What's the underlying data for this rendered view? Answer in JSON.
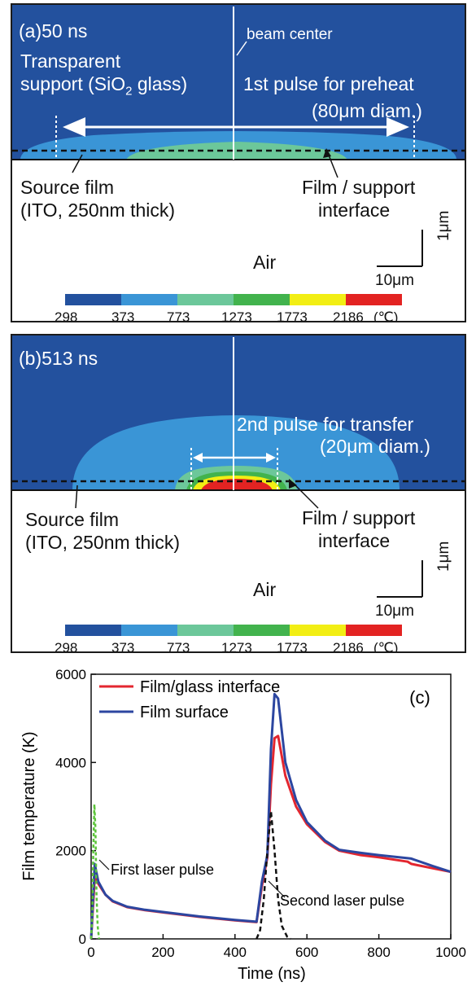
{
  "colors": {
    "c298": "#23519e",
    "c373": "#3a95d6",
    "c773": "#6cc79a",
    "c1273": "#42b34d",
    "c1773": "#f2ee14",
    "c2186": "#e32322",
    "film_interface": "#e3262f",
    "film_surface": "#2c46a0",
    "laser_pulse": "#111111",
    "first_pulse_green": "#5cc43a"
  },
  "panel_a": {
    "label": "(a)50 ns",
    "beam_center": "beam center",
    "support_1": "Transparent",
    "support_2": "support (SiO",
    "support_sub": "2",
    "support_3": " glass)",
    "pulse_1": "1st pulse for preheat",
    "pulse_2": "(80μm diam.)",
    "source_1": "Source film",
    "source_2": "(ITO, 250nm thick)",
    "iface_1": "Film / support",
    "iface_2": "interface",
    "air": "Air",
    "scale_h": "10μm",
    "scale_v": "1μm",
    "colorbar_ticks": [
      "298",
      "373",
      "773",
      "1273",
      "1773",
      "2186"
    ],
    "unit": "(℃)"
  },
  "panel_b": {
    "label": "(b)513 ns",
    "pulse_1": "2nd pulse for transfer",
    "pulse_2": "(20μm diam.)",
    "source_1": "Source film",
    "source_2": "(ITO, 250nm thick)",
    "iface_1": "Film / support",
    "iface_2": "interface",
    "air": "Air",
    "scale_h": "10μm",
    "scale_v": "1μm",
    "colorbar_ticks": [
      "298",
      "373",
      "773",
      "1273",
      "1773",
      "2186"
    ],
    "unit": "(℃)"
  },
  "chart_data": {
    "type": "line",
    "panel_label": "(c)",
    "xlabel": "Time (ns)",
    "ylabel": "Film temperature (K)",
    "xlim": [
      0,
      1000
    ],
    "ylim": [
      0,
      6000
    ],
    "xticks": [
      0,
      200,
      400,
      600,
      800,
      1000
    ],
    "yticks": [
      0,
      2000,
      4000,
      6000
    ],
    "legend_position": "top-left",
    "annotations": [
      "First laser pulse",
      "Second laser pulse"
    ],
    "series": [
      {
        "name": "Film/glass interface",
        "x": [
          0,
          10,
          20,
          40,
          60,
          100,
          150,
          200,
          300,
          400,
          460,
          475,
          490,
          500,
          510,
          520,
          540,
          570,
          600,
          650,
          690,
          750,
          800,
          880,
          890,
          950,
          1000
        ],
        "y": [
          0,
          1400,
          1250,
          1000,
          850,
          720,
          650,
          600,
          500,
          420,
          380,
          1200,
          1850,
          3500,
          4550,
          4600,
          3700,
          3000,
          2600,
          2200,
          2000,
          1900,
          1850,
          1750,
          1700,
          1600,
          1520
        ]
      },
      {
        "name": "Film surface",
        "x": [
          0,
          10,
          20,
          40,
          60,
          100,
          150,
          200,
          300,
          400,
          460,
          475,
          490,
          500,
          510,
          520,
          540,
          570,
          600,
          650,
          690,
          750,
          800,
          880,
          890,
          950,
          1000
        ],
        "y": [
          0,
          1700,
          1300,
          1000,
          860,
          730,
          660,
          610,
          510,
          430,
          390,
          1300,
          1900,
          4300,
          5550,
          5450,
          4000,
          3150,
          2650,
          2230,
          2020,
          1950,
          1900,
          1830,
          1820,
          1650,
          1520
        ]
      },
      {
        "name": "",
        "style": "dashed",
        "x": [
          460,
          470,
          480,
          490,
          500,
          510,
          520,
          530,
          545,
          555
        ],
        "y": [
          0,
          200,
          900,
          2000,
          2900,
          2000,
          900,
          300,
          50,
          0
        ]
      },
      {
        "name": "",
        "style": "dashed-green",
        "x": [
          0,
          3,
          6,
          9,
          12,
          15,
          18,
          22
        ],
        "y": [
          0,
          500,
          2000,
          3050,
          2500,
          1000,
          300,
          0
        ]
      }
    ]
  }
}
